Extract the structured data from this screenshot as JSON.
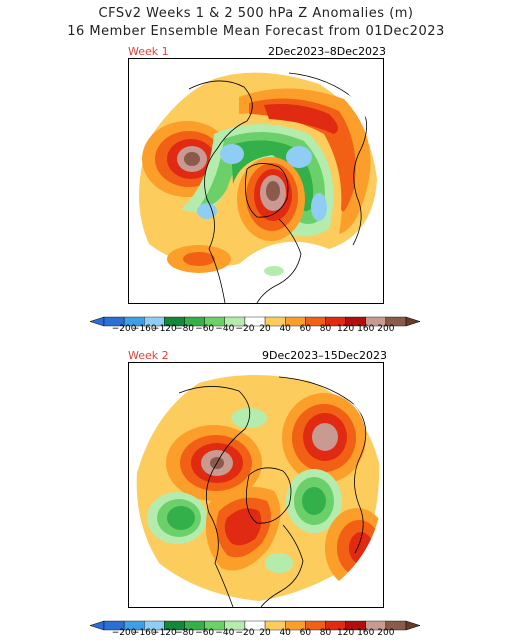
{
  "header": {
    "title_line1": "CFSv2 Weeks 1 & 2 500 hPa Z Anomalies (m)",
    "title_line2": "16 Member Ensemble Mean Forecast from 01Dec2023"
  },
  "panels": [
    {
      "week_label": "Week 1",
      "date_range": "2Dec2023–8Dec2023"
    },
    {
      "week_label": "Week 2",
      "date_range": "9Dec2023–15Dec2023"
    }
  ],
  "colorbar": {
    "ticks": [
      "−200",
      "−160",
      "−120",
      "−80",
      "−60",
      "−40",
      "−20",
      "20",
      "40",
      "60",
      "80",
      "120",
      "160",
      "200"
    ],
    "colors": [
      "#2a6fd6",
      "#3c9fe8",
      "#8fcdf4",
      "#0e8a3a",
      "#33b04a",
      "#6cd06a",
      "#b4ecae",
      "#ffffff",
      "#fccc5c",
      "#fc9e2a",
      "#f16014",
      "#e02a12",
      "#b40e0c",
      "#c89a92",
      "#8c5a4a"
    ],
    "arrow_left_color": "#2a6fd6",
    "arrow_right_color": "#6a3a2a"
  }
}
